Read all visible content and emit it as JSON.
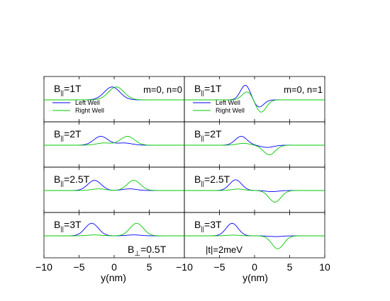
{
  "chart_data": {
    "type": "line",
    "series_colors": {
      "Left Well": "#0000ff",
      "Right Well": "#00c800"
    },
    "legend_entries": [
      "Left Well",
      "Right Well"
    ],
    "xlabel": "y(nm)",
    "xticks": [
      "−10",
      "−5",
      "0",
      "5",
      "10"
    ],
    "xlim": [
      -10,
      10
    ],
    "panel_cols": [
      {
        "xlim": [
          -10,
          10
        ],
        "ticks": [
          -10,
          -5,
          0,
          5
        ]
      },
      {
        "xlim": [
          -10,
          10
        ],
        "ticks": [
          -10,
          -5,
          0,
          5,
          10
        ]
      }
    ],
    "columns": [
      {
        "label": "m=0, n=0",
        "note": "B_⊥=0.5T",
        "panels": [
          {
            "field_label": "B||=1T",
            "b_value": "1T",
            "series": [
              {
                "name": "Left Well",
                "components": [
                  {
                    "amp": 0.7,
                    "mu": -0.3,
                    "sigma": 1.1
                  }
                ]
              },
              {
                "name": "Right Well",
                "components": [
                  {
                    "amp": 0.7,
                    "mu": 0.3,
                    "sigma": 1.1
                  }
                ]
              }
            ]
          },
          {
            "field_label": "B||=2T",
            "b_value": "2T",
            "series": [
              {
                "name": "Left Well",
                "components": [
                  {
                    "amp": 0.48,
                    "mu": -1.9,
                    "sigma": 1.0
                  },
                  {
                    "amp": 0.12,
                    "mu": 1.4,
                    "sigma": 1.1
                  }
                ]
              },
              {
                "name": "Right Well",
                "components": [
                  {
                    "amp": 0.48,
                    "mu": 1.9,
                    "sigma": 1.0
                  },
                  {
                    "amp": 0.12,
                    "mu": -1.4,
                    "sigma": 1.1
                  }
                ]
              }
            ]
          },
          {
            "field_label": "B||=2.5T",
            "b_value": "2.5T",
            "series": [
              {
                "name": "Left Well",
                "components": [
                  {
                    "amp": 0.55,
                    "mu": -2.8,
                    "sigma": 0.95
                  },
                  {
                    "amp": 0.09,
                    "mu": 2.2,
                    "sigma": 1.0
                  }
                ]
              },
              {
                "name": "Right Well",
                "components": [
                  {
                    "amp": 0.55,
                    "mu": 2.8,
                    "sigma": 0.95
                  },
                  {
                    "amp": 0.09,
                    "mu": -2.2,
                    "sigma": 1.0
                  }
                ]
              }
            ]
          },
          {
            "field_label": "B||=3T",
            "b_value": "3T",
            "series": [
              {
                "name": "Left Well",
                "components": [
                  {
                    "amp": 0.68,
                    "mu": -3.2,
                    "sigma": 0.95
                  },
                  {
                    "amp": 0.05,
                    "mu": 2.8,
                    "sigma": 1.0
                  }
                ]
              },
              {
                "name": "Right Well",
                "components": [
                  {
                    "amp": 0.68,
                    "mu": 3.2,
                    "sigma": 0.95
                  },
                  {
                    "amp": 0.05,
                    "mu": -2.8,
                    "sigma": 1.0
                  }
                ]
              }
            ]
          }
        ]
      },
      {
        "label": "m=0, n=1",
        "note": "|t|=2meV",
        "panels": [
          {
            "field_label": "B||=1T",
            "b_value": "1T",
            "series": [
              {
                "name": "Left Well",
                "components": [
                  {
                    "amp": 0.8,
                    "mu": -1.3,
                    "sigma": 0.7
                  },
                  {
                    "amp": -0.4,
                    "mu": 0.6,
                    "sigma": 0.7
                  }
                ]
              },
              {
                "name": "Right Well",
                "components": [
                  {
                    "amp": 0.45,
                    "mu": -1.0,
                    "sigma": 0.75
                  },
                  {
                    "amp": -0.68,
                    "mu": 0.9,
                    "sigma": 0.75
                  }
                ]
              }
            ]
          },
          {
            "field_label": "B||=2T",
            "b_value": "2T",
            "series": [
              {
                "name": "Left Well",
                "components": [
                  {
                    "amp": 0.48,
                    "mu": -1.9,
                    "sigma": 0.85
                  },
                  {
                    "amp": -0.12,
                    "mu": 1.8,
                    "sigma": 0.9
                  }
                ]
              },
              {
                "name": "Right Well",
                "components": [
                  {
                    "amp": 0.1,
                    "mu": -1.6,
                    "sigma": 0.9
                  },
                  {
                    "amp": -0.52,
                    "mu": 2.1,
                    "sigma": 0.85
                  }
                ]
              }
            ]
          },
          {
            "field_label": "B||=2.5T",
            "b_value": "2.5T",
            "series": [
              {
                "name": "Left Well",
                "components": [
                  {
                    "amp": 0.58,
                    "mu": -2.7,
                    "sigma": 0.85
                  },
                  {
                    "amp": -0.06,
                    "mu": 2.5,
                    "sigma": 0.9
                  }
                ]
              },
              {
                "name": "Right Well",
                "components": [
                  {
                    "amp": 0.08,
                    "mu": -2.4,
                    "sigma": 0.9
                  },
                  {
                    "amp": -0.63,
                    "mu": 2.9,
                    "sigma": 0.85
                  }
                ]
              }
            ]
          },
          {
            "field_label": "B||=3T",
            "b_value": "3T",
            "series": [
              {
                "name": "Left Well",
                "components": [
                  {
                    "amp": 0.68,
                    "mu": -3.2,
                    "sigma": 0.85
                  },
                  {
                    "amp": -0.04,
                    "mu": 3.0,
                    "sigma": 0.9
                  }
                ]
              },
              {
                "name": "Right Well",
                "components": [
                  {
                    "amp": 0.04,
                    "mu": -3.0,
                    "sigma": 0.9
                  },
                  {
                    "amp": -0.7,
                    "mu": 3.3,
                    "sigma": 0.85
                  }
                ]
              }
            ]
          }
        ]
      }
    ]
  }
}
